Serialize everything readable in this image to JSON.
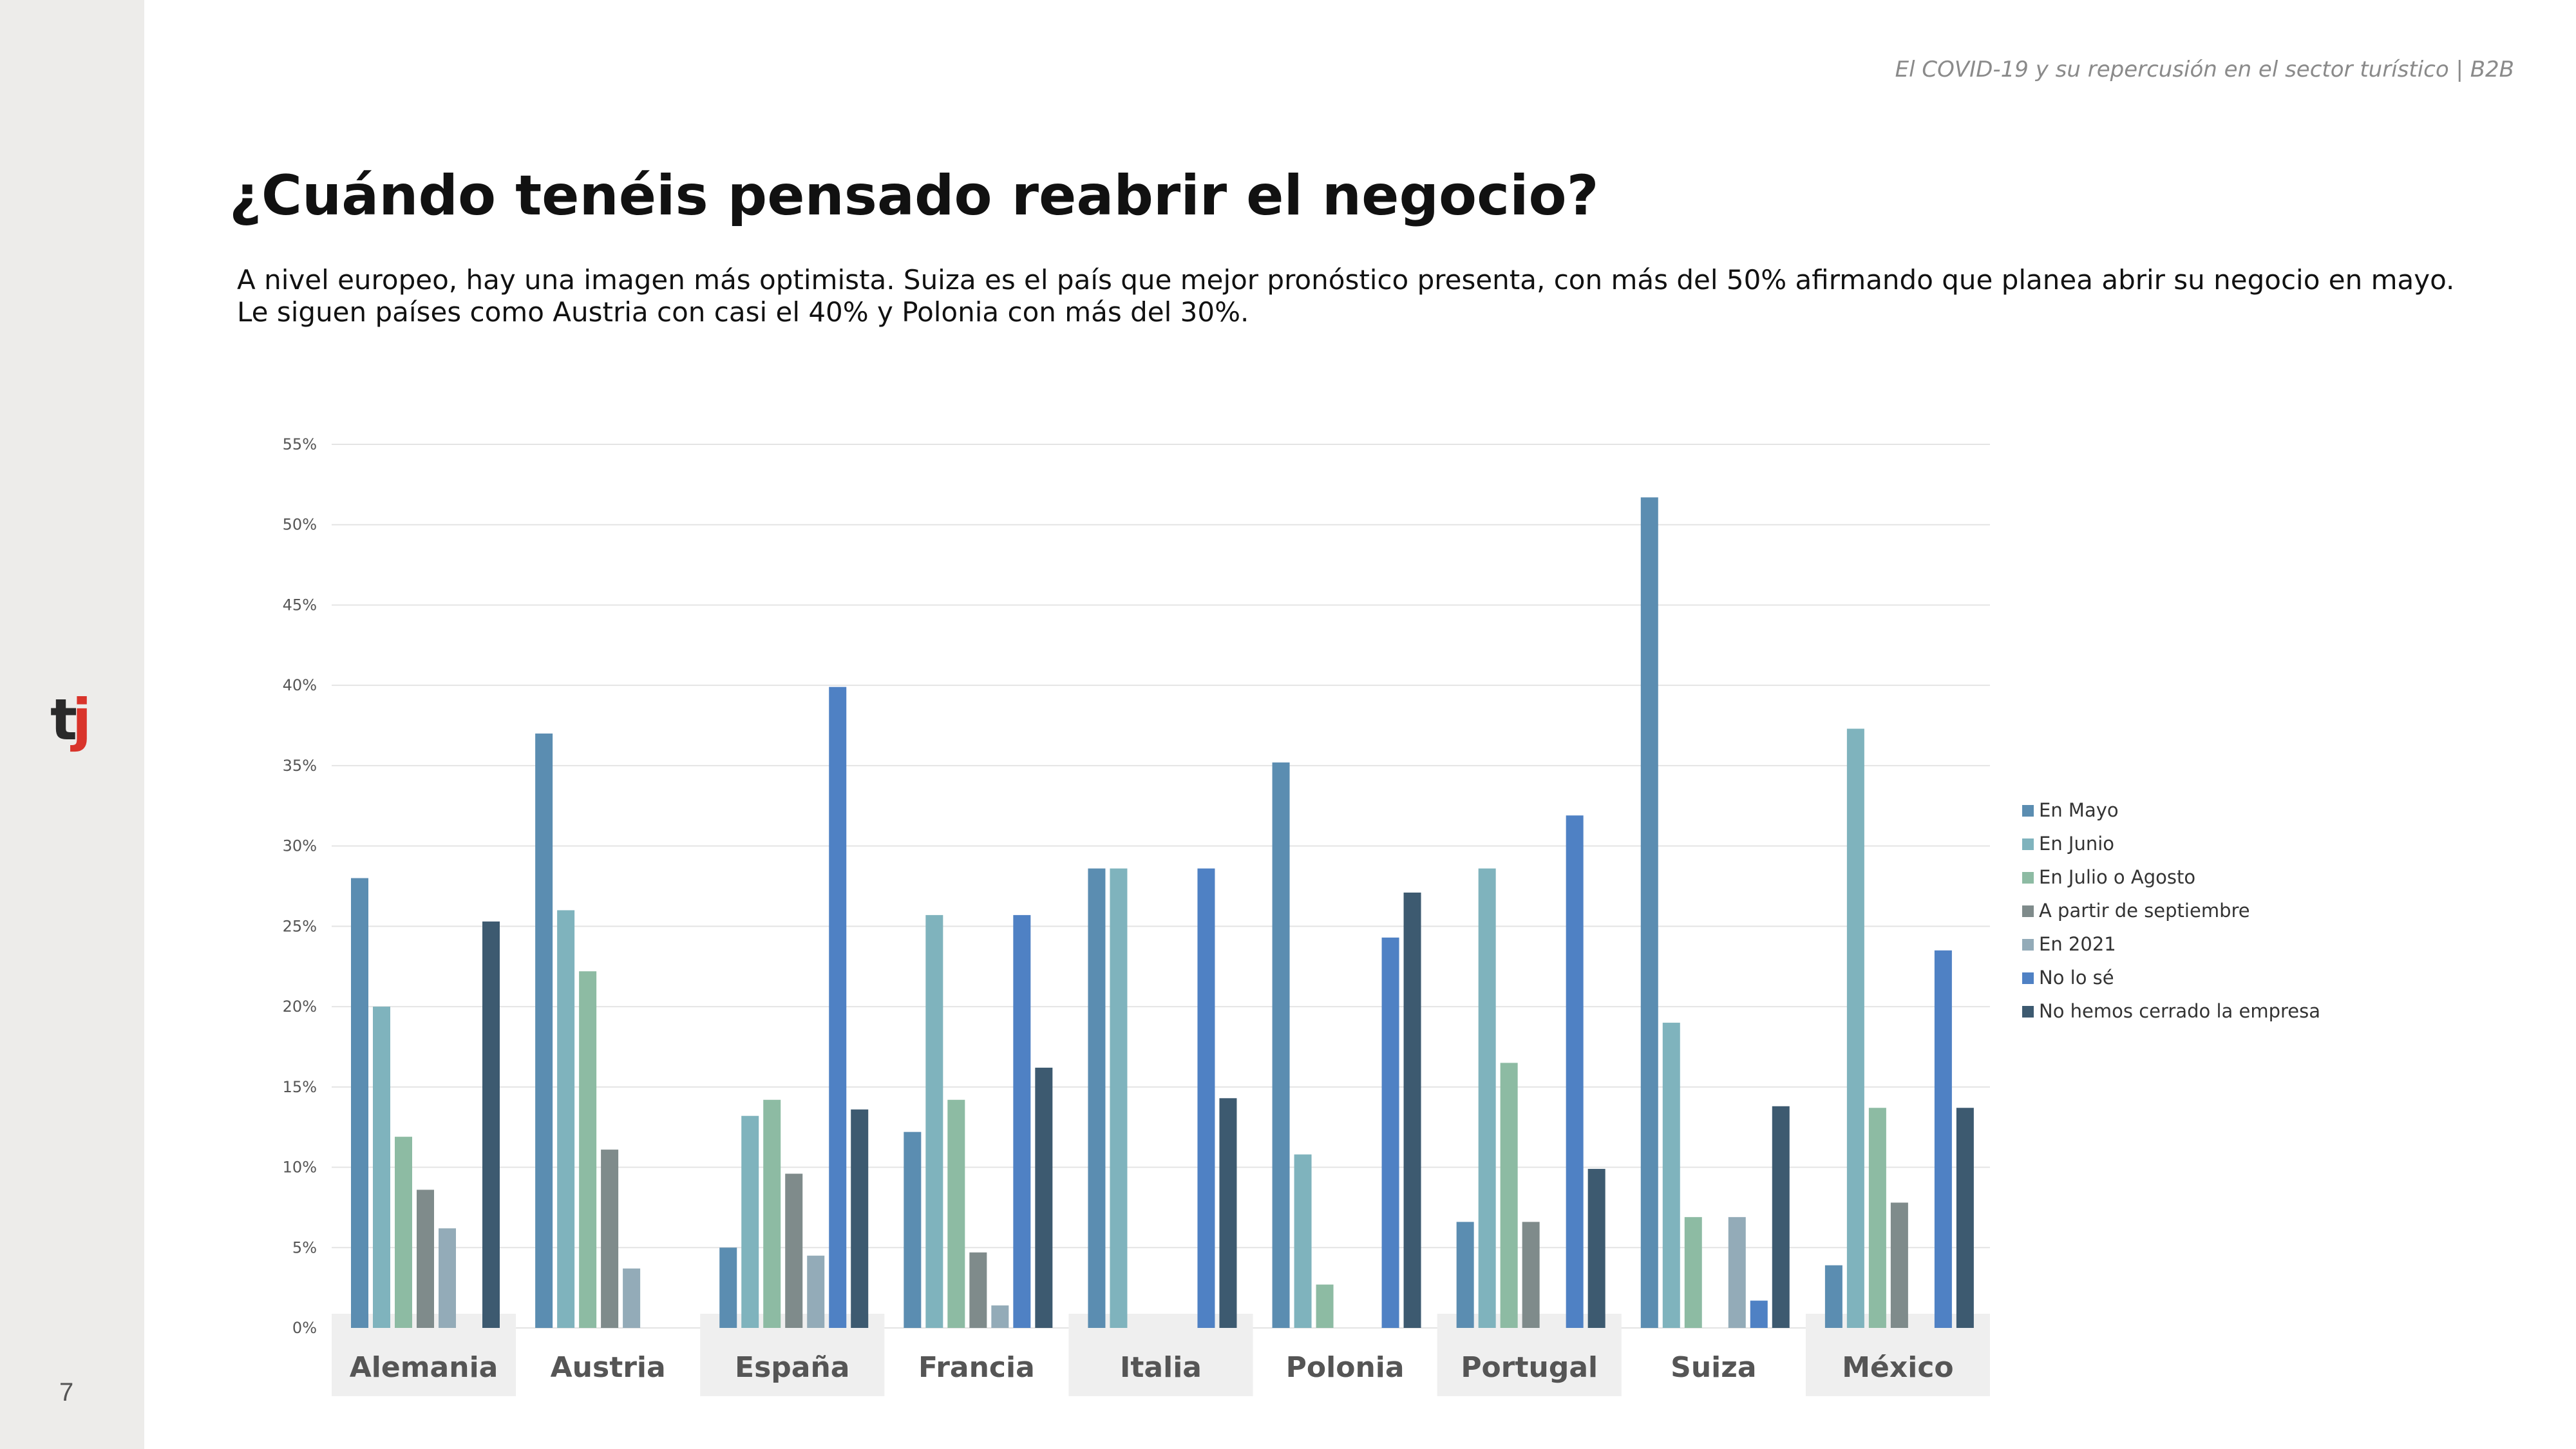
{
  "header_note": "El COVID-19 y su repercusión en el sector turístico | B2B",
  "title": "¿Cuándo tenéis pensado reabrir el negocio?",
  "subtitle_lines": [
    "A nivel europeo, hay una imagen más optimista. Suiza es el país que mejor pronóstico presenta, con más del 50% afirmando que planea abrir su negocio en mayo.",
    "Le siguen países como Austria con casi el 40% y Polonia con más del 30%."
  ],
  "page_number": "7",
  "logo": {
    "text": "tj",
    "colors": {
      "t": "#2a2a2a",
      "j": "#d9342b"
    }
  },
  "chart_data": {
    "type": "bar",
    "categories": [
      "Alemania",
      "Austria",
      "España",
      "Francia",
      "Italia",
      "Polonia",
      "Portugal",
      "Suiza",
      "México"
    ],
    "ylim": [
      0,
      55
    ],
    "yticks": [
      0,
      5,
      10,
      15,
      20,
      25,
      30,
      35,
      40,
      45,
      50,
      55
    ],
    "ytick_labels": [
      "0%",
      "5%",
      "10%",
      "15%",
      "20%",
      "25%",
      "30%",
      "35%",
      "40%",
      "45%",
      "50%",
      "55%"
    ],
    "grid": true,
    "legend_position": "right",
    "series": [
      {
        "name": "En Mayo",
        "color": "#5b8db1",
        "values": [
          28,
          37,
          5,
          12.2,
          28.6,
          35.2,
          6.6,
          51.7,
          3.9
        ]
      },
      {
        "name": "En Junio",
        "color": "#7fb3bd",
        "values": [
          20,
          26,
          13.2,
          25.7,
          28.6,
          10.8,
          28.6,
          19,
          37.3
        ]
      },
      {
        "name": "En Julio o Agosto",
        "color": "#8dbba3",
        "values": [
          11.9,
          22.2,
          14.2,
          14.2,
          0,
          2.7,
          16.5,
          6.9,
          13.7
        ]
      },
      {
        "name": "A partir de septiembre",
        "color": "#7f8b8b",
        "values": [
          8.6,
          11.1,
          9.6,
          4.7,
          0,
          0,
          6.6,
          0,
          7.8
        ]
      },
      {
        "name": "En 2021",
        "color": "#93abb8",
        "values": [
          6.2,
          3.7,
          4.5,
          1.4,
          0,
          0,
          0,
          6.9,
          0
        ]
      },
      {
        "name": "No lo sé",
        "color": "#4f81c4",
        "values": [
          0,
          0,
          39.9,
          25.7,
          28.6,
          24.3,
          31.9,
          1.7,
          23.5
        ]
      },
      {
        "name": "No hemos cerrado la empresa",
        "color": "#3d5a70",
        "values": [
          25.3,
          0,
          13.6,
          16.2,
          14.3,
          27.1,
          9.9,
          13.8,
          13.7
        ]
      }
    ]
  }
}
